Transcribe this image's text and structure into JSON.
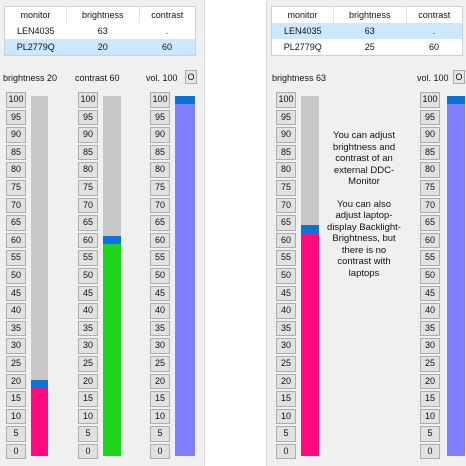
{
  "left": {
    "table": {
      "headers": [
        "monitor",
        "brightness",
        "contrast"
      ],
      "rows": [
        {
          "monitor": "LEN4035",
          "brightness": "63",
          "contrast": "."
        },
        {
          "monitor": "PL2779Q",
          "brightness": "20",
          "contrast": "60"
        }
      ],
      "selected_row": 1
    },
    "brightness_label": "brightness 20",
    "contrast_label": "contrast 60",
    "volume_label": "vol. 100",
    "mute_label": "O",
    "brightness_value": 20,
    "contrast_value": 60,
    "volume_value": 100
  },
  "right": {
    "table": {
      "headers": [
        "monitor",
        "brightness",
        "contrast"
      ],
      "rows": [
        {
          "monitor": "LEN4035",
          "brightness": "63",
          "contrast": "."
        },
        {
          "monitor": "PL2779Q",
          "brightness": "25",
          "contrast": "60"
        }
      ],
      "selected_row": 0
    },
    "brightness_label": "brightness 63",
    "volume_label": "vol. 100",
    "mute_label": "O",
    "brightness_value": 63,
    "volume_value": 100,
    "info_text_1": "You can adjust brightness and contrast of an external DDC-Monitor",
    "info_text_2": "You can also adjust laptop-display Backlight-Brightness, but there is no contrast with laptops"
  },
  "step_labels": [
    "100",
    "95",
    "90",
    "85",
    "80",
    "75",
    "70",
    "65",
    "60",
    "55",
    "50",
    "45",
    "40",
    "35",
    "30",
    "25",
    "20",
    "15",
    "10",
    "5",
    "0"
  ],
  "colors": {
    "brightness_fill": "#ff0a7e",
    "contrast_fill": "#1ed61e",
    "volume_fill": "#8080ff",
    "thumb": "#0b73d6",
    "track": "#c8c8c8",
    "selection": "#cce8ff"
  }
}
